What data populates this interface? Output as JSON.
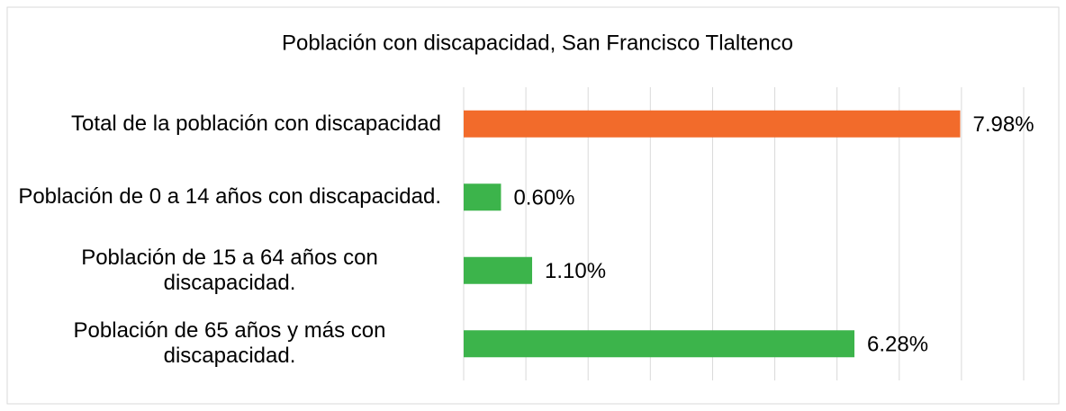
{
  "chart_data": {
    "type": "barh",
    "title": "Población con discapacidad, San Francisco Tlaltenco",
    "categories": [
      "Total de la población con discapacidad",
      "Población de 0 a 14 años con discapacidad.",
      "Población de 15 a 64 años con discapacidad.",
      "Población de 65 años y más con discapacidad."
    ],
    "values": [
      7.98,
      0.6,
      1.1,
      6.28
    ],
    "value_labels": [
      "7.98%",
      "0.60%",
      "1.10%",
      "6.28%"
    ],
    "colors": [
      "#f26b2b",
      "#3cb44b",
      "#3cb44b",
      "#3cb44b"
    ],
    "xlim": [
      0,
      9
    ],
    "xticks": [
      0,
      1,
      2,
      3,
      4,
      5,
      6,
      7,
      8,
      9
    ],
    "grid": true
  }
}
